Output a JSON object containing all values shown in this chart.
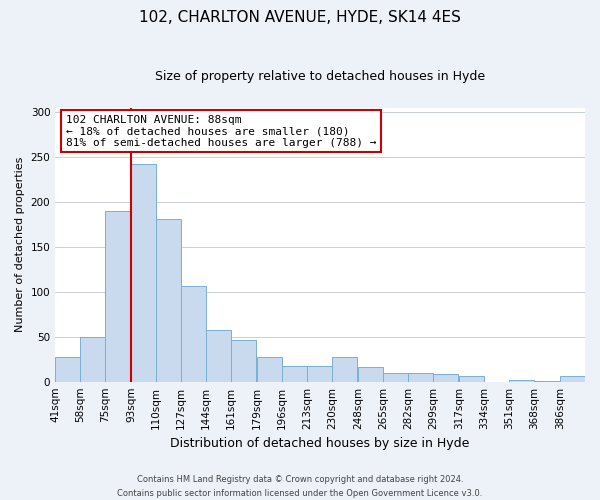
{
  "title": "102, CHARLTON AVENUE, HYDE, SK14 4ES",
  "subtitle": "Size of property relative to detached houses in Hyde",
  "xlabel": "Distribution of detached houses by size in Hyde",
  "ylabel": "Number of detached properties",
  "bin_labels": [
    "41sqm",
    "58sqm",
    "75sqm",
    "93sqm",
    "110sqm",
    "127sqm",
    "144sqm",
    "161sqm",
    "179sqm",
    "196sqm",
    "213sqm",
    "230sqm",
    "248sqm",
    "265sqm",
    "282sqm",
    "299sqm",
    "317sqm",
    "334sqm",
    "351sqm",
    "368sqm",
    "386sqm"
  ],
  "bar_heights": [
    28,
    50,
    190,
    242,
    181,
    107,
    57,
    46,
    27,
    18,
    18,
    28,
    16,
    10,
    10,
    9,
    6,
    0,
    2,
    1,
    6
  ],
  "bar_color": "#c9d9ee",
  "bar_edge_color": "#7aafd4",
  "vline_color": "#cc0000",
  "vline_bin_index": 3,
  "annotation_title": "102 CHARLTON AVENUE: 88sqm",
  "annotation_line1": "← 18% of detached houses are smaller (180)",
  "annotation_line2": "81% of semi-detached houses are larger (788) →",
  "annotation_box_color": "#ffffff",
  "annotation_box_edge_color": "#cc0000",
  "ylim": [
    0,
    305
  ],
  "yticks": [
    0,
    50,
    100,
    150,
    200,
    250,
    300
  ],
  "footer1": "Contains HM Land Registry data © Crown copyright and database right 2024.",
  "footer2": "Contains public sector information licensed under the Open Government Licence v3.0.",
  "bg_color": "#edf1f8",
  "plot_bg_color": "#ffffff",
  "title_fontsize": 11,
  "subtitle_fontsize": 9,
  "ylabel_fontsize": 8,
  "xlabel_fontsize": 9,
  "annotation_fontsize": 8,
  "tick_fontsize": 7.5,
  "footer_fontsize": 6
}
